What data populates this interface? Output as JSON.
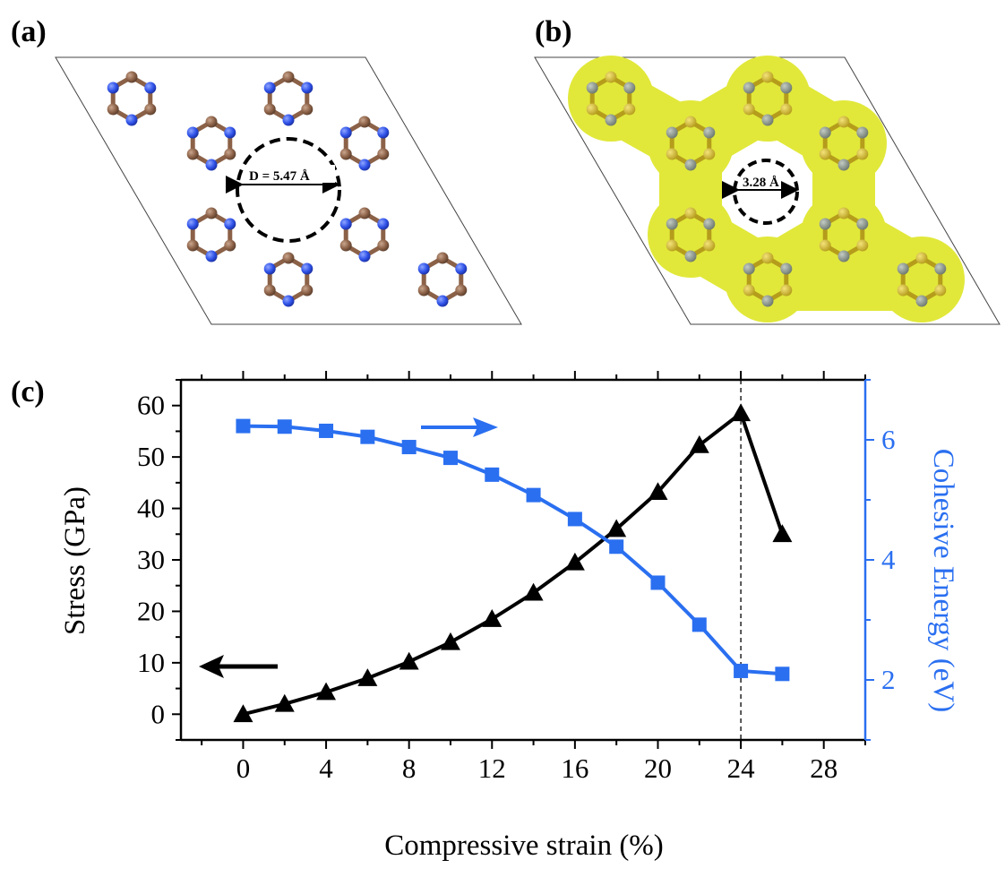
{
  "panels": {
    "a": {
      "label": "(a)",
      "pore_annotation": "D = 5.47 Å"
    },
    "b": {
      "label": "(b)",
      "pore_annotation": "3.28 Å"
    },
    "c": {
      "label": "(c)"
    }
  },
  "colors": {
    "nitrogen": "#2f52e8",
    "carbon": "#8b6147",
    "bond_brown": "#8b6147",
    "density_yellow": "#e1e83a",
    "density_atom_yellow": "#c9b627",
    "density_atom_gray": "#7f8a80",
    "stress": "#000000",
    "energy": "#2a6ff0",
    "cohesive_axis": "#2a6ff0"
  },
  "chart_data": {
    "type": "line",
    "xlabel": "Compressive strain (%)",
    "ylabel": "Stress (GPa)",
    "y2label": "Cohesive Energy (eV)",
    "xlim": [
      -3,
      30
    ],
    "ylim": [
      -5,
      65
    ],
    "y2lim": [
      1,
      7
    ],
    "xticks": [
      0,
      4,
      8,
      12,
      16,
      20,
      24,
      28
    ],
    "yticks": [
      0,
      10,
      20,
      30,
      40,
      50,
      60
    ],
    "y2ticks": [
      2,
      4,
      6
    ],
    "vline_x": 24,
    "series": [
      {
        "key": "stress",
        "axis": "left",
        "marker": "triangle",
        "x": [
          0,
          2,
          4,
          6,
          8,
          10,
          12,
          14,
          16,
          18,
          20,
          22,
          24,
          26
        ],
        "values": [
          0.0,
          2.0,
          4.3,
          7.0,
          10.2,
          14.0,
          18.5,
          23.6,
          29.5,
          36.0,
          43.2,
          52.3,
          58.5,
          35.0
        ]
      },
      {
        "key": "energy",
        "axis": "right",
        "marker": "square",
        "x": [
          0,
          2,
          4,
          6,
          8,
          10,
          12,
          14,
          16,
          18,
          20,
          22,
          24,
          26
        ],
        "values": [
          6.23,
          6.22,
          6.15,
          6.05,
          5.88,
          5.7,
          5.42,
          5.08,
          4.68,
          4.22,
          3.62,
          2.92,
          2.15,
          2.1
        ]
      }
    ]
  }
}
